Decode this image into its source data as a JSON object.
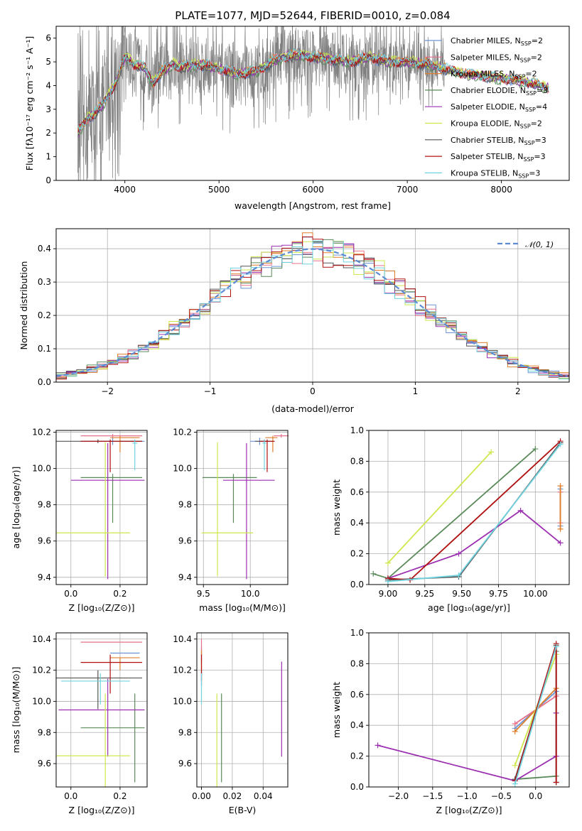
{
  "colors": {
    "Chabrier MILES": "#6b93d6",
    "Salpeter MILES": "#e8708a",
    "Kroupa MILES": "#e07f2a",
    "Chabrier ELODIE": "#5a8a5a",
    "Salpeter ELODIE": "#9b2fb0",
    "Kroupa ELODIE": "#cde84d",
    "Chabrier STELIB": "#555555",
    "Salpeter STELIB": "#b01010",
    "Kroupa STELIB": "#6fd3e0",
    "gauss": "#5b8bd4",
    "spectrum": "#808080"
  },
  "chart_data": [
    {
      "id": "spectrum",
      "type": "line",
      "title": "PLATE=1077, MJD=52644, FIBERID=0010, z=0.084",
      "xlabel": "wavelength [Angstrom, rest frame]",
      "ylabel": "Flux [fλ10⁻¹⁷ erg cm⁻² s⁻¹ A⁻¹]",
      "xlim": [
        3270,
        8720
      ],
      "ylim": [
        0,
        6.5
      ],
      "xticks": [
        "4000",
        "5000",
        "6000",
        "7000",
        "8000"
      ],
      "yticks": [
        "0",
        "1",
        "2",
        "3",
        "4",
        "5",
        "6"
      ],
      "legend_position": "top-right",
      "data_range": [
        3500,
        8500
      ],
      "series": [
        {
          "name": "Chabrier MILES, N",
          "sub": "SSP",
          "n": "=2"
        },
        {
          "name": "Salpeter MILES, N",
          "sub": "SSP",
          "n": "=2"
        },
        {
          "name": "Kroupa MILES, N",
          "sub": "SSP",
          "n": "=2"
        },
        {
          "name": "Chabrier ELODIE, N",
          "sub": "SSP",
          "n": "=3"
        },
        {
          "name": "Salpeter ELODIE, N",
          "sub": "SSP",
          "n": "=4"
        },
        {
          "name": "Kroupa ELODIE, N",
          "sub": "SSP",
          "n": "=2"
        },
        {
          "name": "Chabrier STELIB, N",
          "sub": "SSP",
          "n": "=3"
        },
        {
          "name": "Salpeter STELIB, N",
          "sub": "SSP",
          "n": "=3"
        },
        {
          "name": "Kroupa STELIB, N",
          "sub": "SSP",
          "n": "=3"
        }
      ],
      "continuum_points": [
        [
          3500,
          2.0
        ],
        [
          3600,
          2.6
        ],
        [
          3700,
          2.9
        ],
        [
          3800,
          3.4
        ],
        [
          3900,
          4.1
        ],
        [
          4000,
          5.2
        ],
        [
          4100,
          4.9
        ],
        [
          4200,
          4.8
        ],
        [
          4300,
          4.1
        ],
        [
          4400,
          4.6
        ],
        [
          4500,
          4.9
        ],
        [
          4600,
          4.8
        ],
        [
          4800,
          4.9
        ],
        [
          5000,
          4.7
        ],
        [
          5200,
          4.5
        ],
        [
          5400,
          4.6
        ],
        [
          5600,
          5.1
        ],
        [
          5800,
          5.3
        ],
        [
          6000,
          5.2
        ],
        [
          6200,
          5.1
        ],
        [
          6400,
          5.0
        ],
        [
          6600,
          5.2
        ],
        [
          6800,
          5.0
        ],
        [
          7000,
          5.0
        ],
        [
          7200,
          4.9
        ],
        [
          7400,
          4.7
        ],
        [
          7600,
          4.5
        ],
        [
          7800,
          4.4
        ],
        [
          8000,
          4.3
        ],
        [
          8200,
          4.2
        ],
        [
          8400,
          4.0
        ],
        [
          8500,
          3.9
        ]
      ]
    },
    {
      "id": "residuals",
      "type": "histogram",
      "xlabel": "(data-model)/error",
      "ylabel": "Normed distribution",
      "xlim": [
        -2.5,
        2.5
      ],
      "ylim": [
        0,
        0.46
      ],
      "xticks": [
        -2,
        -1,
        0,
        1,
        2
      ],
      "yticks": [
        0.0,
        0.1,
        0.2,
        0.3,
        0.4
      ],
      "grid": true,
      "legend": "𝒩(0, 1)",
      "legend_position": "top-right",
      "bin_width": 0.1,
      "gaussian": {
        "mean": 0,
        "sigma": 1
      }
    },
    {
      "id": "age_vs_Z",
      "type": "errorbar",
      "xlabel": "Z [log₁₀(Z/Z⊙)]",
      "ylabel": "age [log₁₀(age/yr)]",
      "xlim": [
        -0.06,
        0.31
      ],
      "ylim": [
        9.36,
        10.21
      ],
      "xticks": [
        0.0,
        0.2
      ],
      "yticks": [
        9.4,
        9.6,
        9.8,
        10.0,
        10.2
      ],
      "grid": true,
      "points": [
        {
          "model": "Chabrier MILES",
          "x": 0.17,
          "y": 10.15,
          "xe": [
            0.13,
            0.13
          ],
          "ye": [
            0.02,
            0.02
          ]
        },
        {
          "model": "Salpeter MILES",
          "x": 0.17,
          "y": 10.18,
          "xe": [
            0.13,
            0.12
          ],
          "ye": [
            0.01,
            0.01
          ]
        },
        {
          "model": "Kroupa MILES",
          "x": 0.2,
          "y": 10.17,
          "xe": [
            0.04,
            0.08
          ],
          "ye": [
            0.08,
            0.01
          ]
        },
        {
          "model": "Chabrier ELODIE",
          "x": 0.17,
          "y": 9.95,
          "xe": [
            0.13,
            0.12
          ],
          "ye": [
            0.25,
            0.02
          ]
        },
        {
          "model": "Salpeter ELODIE",
          "x": 0.15,
          "y": 9.935,
          "xe": [
            0.15,
            0.15
          ],
          "ye": [
            0.545,
            0.205
          ]
        },
        {
          "model": "Kroupa ELODIE",
          "x": 0.14,
          "y": 9.645,
          "xe": [
            0.2,
            0.1
          ],
          "ye": [
            0.24,
            0.5
          ]
        },
        {
          "model": "Chabrier STELIB",
          "x": 0.11,
          "y": 10.15,
          "xe": [
            0.17,
            0.18
          ],
          "ye": [
            0.01,
            0.01
          ]
        },
        {
          "model": "Salpeter STELIB",
          "x": 0.16,
          "y": 10.15,
          "xe": [
            0.12,
            0.13
          ],
          "ye": [
            0.17,
            0.01
          ]
        },
        {
          "model": "Kroupa STELIB",
          "x": 0.26,
          "y": 10.14,
          "xe": [
            0.01,
            0.01
          ],
          "ye": [
            0.15,
            0.02
          ]
        }
      ]
    },
    {
      "id": "age_vs_mass",
      "type": "errorbar",
      "xlabel": "mass [log₁₀(M/M⊙)]",
      "xlim": [
        9.43,
        10.4
      ],
      "ylim": [
        9.36,
        10.21
      ],
      "xticks": [
        9.5,
        10.0
      ],
      "yticks": [
        9.4,
        9.6,
        9.8,
        10.0,
        10.2
      ],
      "grid": true,
      "points": [
        {
          "model": "Chabrier MILES",
          "x": 10.1,
          "y": 10.15,
          "xe": [
            0.1,
            0.1
          ],
          "ye": [
            0.02,
            0.02
          ]
        },
        {
          "model": "Salpeter MILES",
          "x": 10.33,
          "y": 10.18,
          "xe": [
            0.08,
            0.08
          ],
          "ye": [
            0.01,
            0.01
          ]
        },
        {
          "model": "Kroupa MILES",
          "x": 10.24,
          "y": 10.17,
          "xe": [
            0.08,
            0.05
          ],
          "ye": [
            0.08,
            0.01
          ]
        },
        {
          "model": "Chabrier ELODIE",
          "x": 9.82,
          "y": 9.95,
          "xe": [
            0.33,
            0.25
          ],
          "ye": [
            0.25,
            0.02
          ]
        },
        {
          "model": "Salpeter ELODIE",
          "x": 9.96,
          "y": 9.935,
          "xe": [
            0.25,
            0.3
          ],
          "ye": [
            0.545,
            0.205
          ]
        },
        {
          "model": "Kroupa ELODIE",
          "x": 9.65,
          "y": 9.645,
          "xe": [
            0.17,
            0.38
          ],
          "ye": [
            0.24,
            0.5
          ]
        },
        {
          "model": "Chabrier STELIB",
          "x": 10.15,
          "y": 10.15,
          "xe": [
            0.1,
            0.1
          ],
          "ye": [
            0.01,
            0.01
          ]
        },
        {
          "model": "Salpeter STELIB",
          "x": 10.18,
          "y": 10.15,
          "xe": [
            0.08,
            0.08
          ],
          "ye": [
            0.17,
            0.01
          ]
        },
        {
          "model": "Kroupa STELIB",
          "x": 10.15,
          "y": 10.14,
          "xe": [
            0.02,
            0.02
          ],
          "ye": [
            0.15,
            0.02
          ]
        }
      ]
    },
    {
      "id": "weight_vs_age",
      "type": "line",
      "xlabel": "age [log₁₀(age/yr)]",
      "ylabel": "mass weight",
      "xlim": [
        8.87,
        10.23
      ],
      "ylim": [
        0,
        1.0
      ],
      "xticks": [
        9.0,
        9.25,
        9.5,
        9.75,
        10.0
      ],
      "yticks": [
        0.0,
        0.2,
        0.4,
        0.6,
        0.8,
        1.0
      ],
      "grid": true,
      "series": [
        {
          "model": "Chabrier MILES",
          "points": [
            [
              10.17,
              0.62
            ],
            [
              10.17,
              0.38
            ]
          ]
        },
        {
          "model": "Salpeter MILES",
          "points": [
            [
              10.17,
              0.6
            ],
            [
              10.17,
              0.4
            ]
          ]
        },
        {
          "model": "Kroupa MILES",
          "points": [
            [
              10.17,
              0.64
            ],
            [
              10.17,
              0.36
            ]
          ]
        },
        {
          "model": "Chabrier ELODIE",
          "points": [
            [
              8.9,
              0.07
            ],
            [
              9.0,
              0.04
            ],
            [
              10.0,
              0.88
            ]
          ]
        },
        {
          "model": "Salpeter ELODIE",
          "points": [
            [
              9.0,
              0.04
            ],
            [
              9.48,
              0.2
            ],
            [
              9.9,
              0.48
            ],
            [
              10.17,
              0.27
            ]
          ]
        },
        {
          "model": "Kroupa ELODIE",
          "points": [
            [
              9.0,
              0.14
            ],
            [
              9.7,
              0.86
            ]
          ]
        },
        {
          "model": "Chabrier STELIB",
          "points": [
            [
              9.0,
              0.03
            ],
            [
              9.48,
              0.05
            ],
            [
              10.17,
              0.92
            ]
          ]
        },
        {
          "model": "Salpeter STELIB",
          "points": [
            [
              9.0,
              0.04
            ],
            [
              9.15,
              0.03
            ],
            [
              10.17,
              0.93
            ]
          ]
        },
        {
          "model": "Kroupa STELIB",
          "points": [
            [
              9.0,
              0.02
            ],
            [
              9.48,
              0.06
            ],
            [
              10.17,
              0.91
            ]
          ]
        }
      ]
    },
    {
      "id": "mass_vs_Z",
      "type": "errorbar",
      "xlabel": "Z [log₁₀(Z/Z⊙)]",
      "ylabel": "mass [log₁₀(M/M⊙)]",
      "xlim": [
        -0.06,
        0.31
      ],
      "ylim": [
        9.45,
        10.44
      ],
      "xticks": [
        0.0,
        0.2
      ],
      "yticks": [
        9.6,
        9.8,
        10.0,
        10.2,
        10.4
      ],
      "grid": true,
      "points": [
        {
          "model": "Chabrier MILES",
          "x": 0.2,
          "y": 10.31,
          "xe": [
            0.04,
            0.08
          ],
          "ye": [
            0,
            0
          ]
        },
        {
          "model": "Salpeter MILES",
          "x": 0.17,
          "y": 10.38,
          "xe": [
            0.13,
            0.12
          ],
          "ye": [
            0,
            0
          ]
        },
        {
          "model": "Kroupa MILES",
          "x": 0.2,
          "y": 10.28,
          "xe": [
            0.04,
            0.08
          ],
          "ye": [
            0.08,
            0
          ]
        },
        {
          "model": "Chabrier ELODIE",
          "x": 0.26,
          "y": 9.83,
          "xe": [
            0.22,
            0.04
          ],
          "ye": [
            0.35,
            0.22
          ]
        },
        {
          "model": "Salpeter ELODIE",
          "x": 0.15,
          "y": 9.945,
          "xe": [
            0.2,
            0.15
          ],
          "ye": [
            0.3,
            0.2
          ]
        },
        {
          "model": "Kroupa ELODIE",
          "x": 0.14,
          "y": 9.65,
          "xe": [
            0.2,
            0.1
          ],
          "ye": [
            0.2,
            0.4
          ]
        },
        {
          "model": "Chabrier STELIB",
          "x": 0.11,
          "y": 10.15,
          "xe": [
            0.17,
            0.18
          ],
          "ye": [
            0.2,
            0.05
          ]
        },
        {
          "model": "Salpeter STELIB",
          "x": 0.16,
          "y": 10.25,
          "xe": [
            0.12,
            0.13
          ],
          "ye": [
            0.2,
            0.05
          ]
        },
        {
          "model": "Kroupa STELIB",
          "x": 0.12,
          "y": 10.13,
          "xe": [
            0.16,
            0.12
          ],
          "ye": [
            0.15,
            0.05
          ]
        }
      ]
    },
    {
      "id": "mass_vs_ebv",
      "type": "errorbar",
      "xlabel": "E(B-V)",
      "xlim": [
        -0.003,
        0.056
      ],
      "ylim": [
        9.45,
        10.44
      ],
      "xticks": [
        0.0,
        0.02,
        0.04
      ],
      "yticks": [
        9.6,
        9.8,
        10.0,
        10.2,
        10.4
      ],
      "grid": true,
      "points": [
        {
          "model": "Chabrier MILES",
          "x": 0.0,
          "y": 10.31,
          "xe": [
            0,
            0
          ],
          "ye": [
            0.06,
            0.04
          ]
        },
        {
          "model": "Salpeter MILES",
          "x": 0.0,
          "y": 10.35,
          "xe": [
            0,
            0
          ],
          "ye": [
            0.06,
            0.05
          ]
        },
        {
          "model": "Kroupa MILES",
          "x": 0.0,
          "y": 10.28,
          "xe": [
            0,
            0
          ],
          "ye": [
            0.08,
            0.05
          ]
        },
        {
          "model": "Chabrier ELODIE",
          "x": 0.013,
          "y": 9.83,
          "xe": [
            0,
            0
          ],
          "ye": [
            0.35,
            0.22
          ]
        },
        {
          "model": "Salpeter ELODIE",
          "x": 0.052,
          "y": 9.945,
          "xe": [
            0,
            0
          ],
          "ye": [
            0.3,
            0.31
          ]
        },
        {
          "model": "Kroupa ELODIE",
          "x": 0.01,
          "y": 9.65,
          "xe": [
            0,
            0
          ],
          "ye": [
            0.2,
            0.4
          ]
        },
        {
          "model": "Chabrier STELIB",
          "x": 0.0,
          "y": 10.15,
          "xe": [
            0,
            0
          ],
          "ye": [
            0.05,
            0.05
          ]
        },
        {
          "model": "Salpeter STELIB",
          "x": 0.0,
          "y": 10.25,
          "xe": [
            0,
            0
          ],
          "ye": [
            0.12,
            0.05
          ]
        },
        {
          "model": "Kroupa STELIB",
          "x": 0.0,
          "y": 10.1,
          "xe": [
            0,
            0
          ],
          "ye": [
            0.12,
            0.08
          ]
        }
      ]
    },
    {
      "id": "weight_vs_Z",
      "type": "line",
      "xlabel": "Z [log₁₀(Z/Z⊙)]",
      "ylabel": "mass weight",
      "xlim": [
        -2.43,
        0.49
      ],
      "ylim": [
        0,
        1.0
      ],
      "xticks": [
        -2.0,
        -1.5,
        -1.0,
        -0.5,
        0.0
      ],
      "yticks": [
        0.0,
        0.2,
        0.4,
        0.6,
        0.8,
        1.0
      ],
      "grid": true,
      "series": [
        {
          "model": "Chabrier MILES",
          "points": [
            [
              -0.3,
              0.38
            ],
            [
              0.3,
              0.62
            ]
          ]
        },
        {
          "model": "Salpeter MILES",
          "points": [
            [
              -0.3,
              0.41
            ],
            [
              0.3,
              0.59
            ]
          ]
        },
        {
          "model": "Kroupa MILES",
          "points": [
            [
              -0.3,
              0.36
            ],
            [
              0.3,
              0.64
            ]
          ]
        },
        {
          "model": "Chabrier ELODIE",
          "points": [
            [
              -0.3,
              0.05
            ],
            [
              0.3,
              0.07
            ],
            [
              0.3,
              0.88
            ]
          ]
        },
        {
          "model": "Salpeter ELODIE",
          "points": [
            [
              -2.3,
              0.27
            ],
            [
              -0.3,
              0.04
            ],
            [
              0.3,
              0.2
            ],
            [
              0.3,
              0.48
            ]
          ]
        },
        {
          "model": "Kroupa ELODIE",
          "points": [
            [
              -0.3,
              0.14
            ],
            [
              0.3,
              0.86
            ]
          ]
        },
        {
          "model": "Chabrier STELIB",
          "points": [
            [
              -0.3,
              0.05
            ],
            [
              0.3,
              0.92
            ],
            [
              0.3,
              0.03
            ]
          ]
        },
        {
          "model": "Salpeter STELIB",
          "points": [
            [
              -0.3,
              0.04
            ],
            [
              0.3,
              0.93
            ],
            [
              0.3,
              0.03
            ]
          ]
        },
        {
          "model": "Kroupa STELIB",
          "points": [
            [
              -0.3,
              0.02
            ],
            [
              0.3,
              0.91
            ]
          ]
        }
      ]
    }
  ]
}
